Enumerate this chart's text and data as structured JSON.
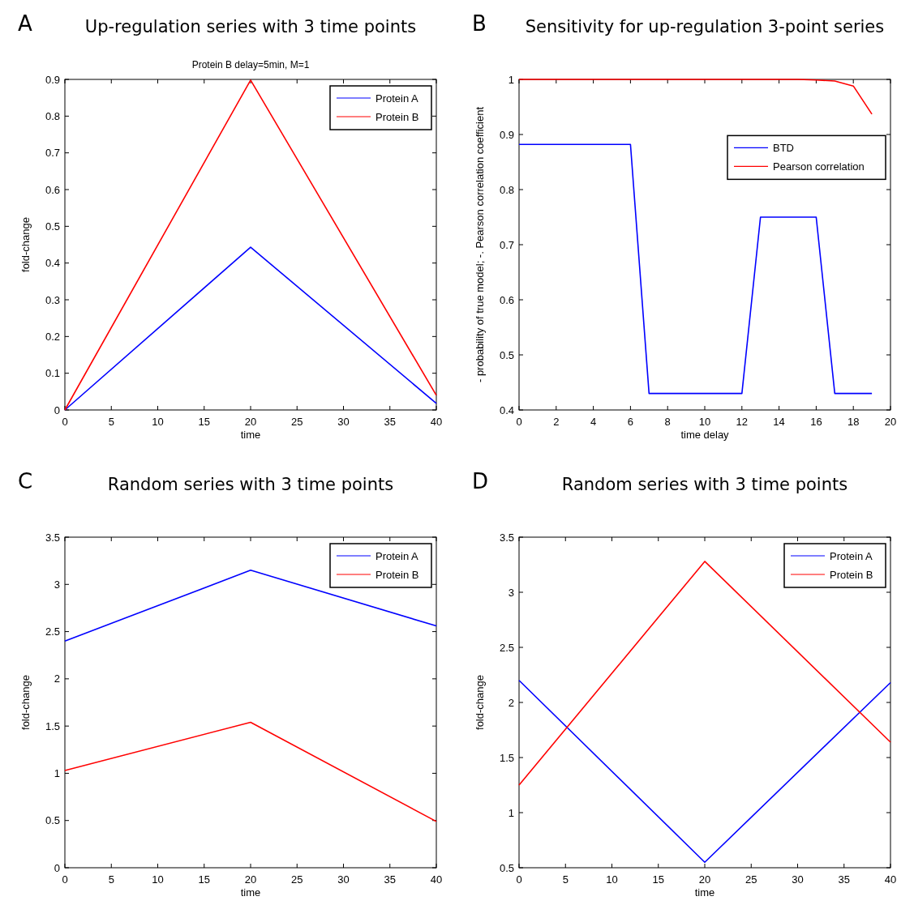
{
  "chart_data": [
    {
      "type": "line",
      "title": "Up-regulation series with 3 time points",
      "subtitle": "Protein B delay=5min, M=1",
      "xlabel": "time",
      "ylabel": "fold-change",
      "annotations": [
        "A"
      ],
      "x": [
        0,
        20,
        40
      ],
      "xlim": [
        0,
        40
      ],
      "xticks": [
        0,
        5,
        10,
        15,
        20,
        25,
        30,
        35,
        40
      ],
      "ylim": [
        0,
        0.9
      ],
      "yticks": [
        0,
        0.1,
        0.2,
        0.3,
        0.4,
        0.5,
        0.6,
        0.7,
        0.8,
        0.9
      ],
      "legend": "top right",
      "series": [
        {
          "name": "Protein A",
          "color": "#0000ff",
          "values": [
            0,
            0.443,
            0.018
          ]
        },
        {
          "name": "Protein B",
          "color": "#ff0000",
          "values": [
            0,
            0.898,
            0.04
          ]
        }
      ]
    },
    {
      "type": "line",
      "title": "Sensitivity for up-regulation 3-point series",
      "xlabel": "time delay",
      "ylabel": "- probability of true model; -. Pearson correlation coefficient",
      "annotations": [
        "B"
      ],
      "x": [
        0,
        1,
        2,
        3,
        4,
        5,
        6,
        7,
        8,
        9,
        10,
        11,
        12,
        13,
        14,
        15,
        16,
        17,
        18,
        19
      ],
      "xlim": [
        0,
        20
      ],
      "xticks": [
        0,
        2,
        4,
        6,
        8,
        10,
        12,
        14,
        16,
        18,
        20
      ],
      "ylim": [
        0.4,
        1
      ],
      "yticks": [
        0.4,
        0.5,
        0.6,
        0.7,
        0.8,
        0.9,
        1
      ],
      "legend": "right",
      "series": [
        {
          "name": "BTD",
          "color": "#0000ff",
          "values": [
            0.882,
            0.882,
            0.882,
            0.882,
            0.882,
            0.882,
            0.882,
            0.43,
            0.43,
            0.43,
            0.43,
            0.43,
            0.43,
            0.75,
            0.75,
            0.75,
            0.75,
            0.43,
            0.43,
            0.43
          ]
        },
        {
          "name": "Pearson correlation",
          "color": "#ff0000",
          "values": [
            1,
            1,
            1,
            1,
            1,
            1,
            1,
            1,
            1,
            1,
            1,
            1,
            1,
            1,
            1,
            1,
            0.999,
            0.997,
            0.988,
            0.937
          ]
        }
      ]
    },
    {
      "type": "line",
      "title": "Random series with 3 time points",
      "xlabel": "time",
      "ylabel": "fold-change",
      "annotations": [
        "C"
      ],
      "x": [
        0,
        20,
        40
      ],
      "xlim": [
        0,
        40
      ],
      "xticks": [
        0,
        5,
        10,
        15,
        20,
        25,
        30,
        35,
        40
      ],
      "ylim": [
        0,
        3.5
      ],
      "yticks": [
        0,
        0.5,
        1,
        1.5,
        2,
        2.5,
        3,
        3.5
      ],
      "legend": "top right",
      "series": [
        {
          "name": "Protein A",
          "color": "#0000ff",
          "values": [
            2.4,
            3.15,
            2.56
          ]
        },
        {
          "name": "Protein B",
          "color": "#ff0000",
          "values": [
            1.03,
            1.54,
            0.49
          ]
        }
      ]
    },
    {
      "type": "line",
      "title": "Random series with 3 time points",
      "xlabel": "time",
      "ylabel": "fold-change",
      "annotations": [
        "D"
      ],
      "x": [
        0,
        20,
        40
      ],
      "xlim": [
        0,
        40
      ],
      "xticks": [
        0,
        5,
        10,
        15,
        20,
        25,
        30,
        35,
        40
      ],
      "ylim": [
        0.5,
        3.5
      ],
      "yticks": [
        0.5,
        1,
        1.5,
        2,
        2.5,
        3,
        3.5
      ],
      "legend": "top right",
      "series": [
        {
          "name": "Protein A",
          "color": "#0000ff",
          "values": [
            2.2,
            0.55,
            2.18
          ]
        },
        {
          "name": "Protein B",
          "color": "#ff0000",
          "values": [
            1.25,
            3.28,
            1.64
          ]
        }
      ]
    }
  ]
}
